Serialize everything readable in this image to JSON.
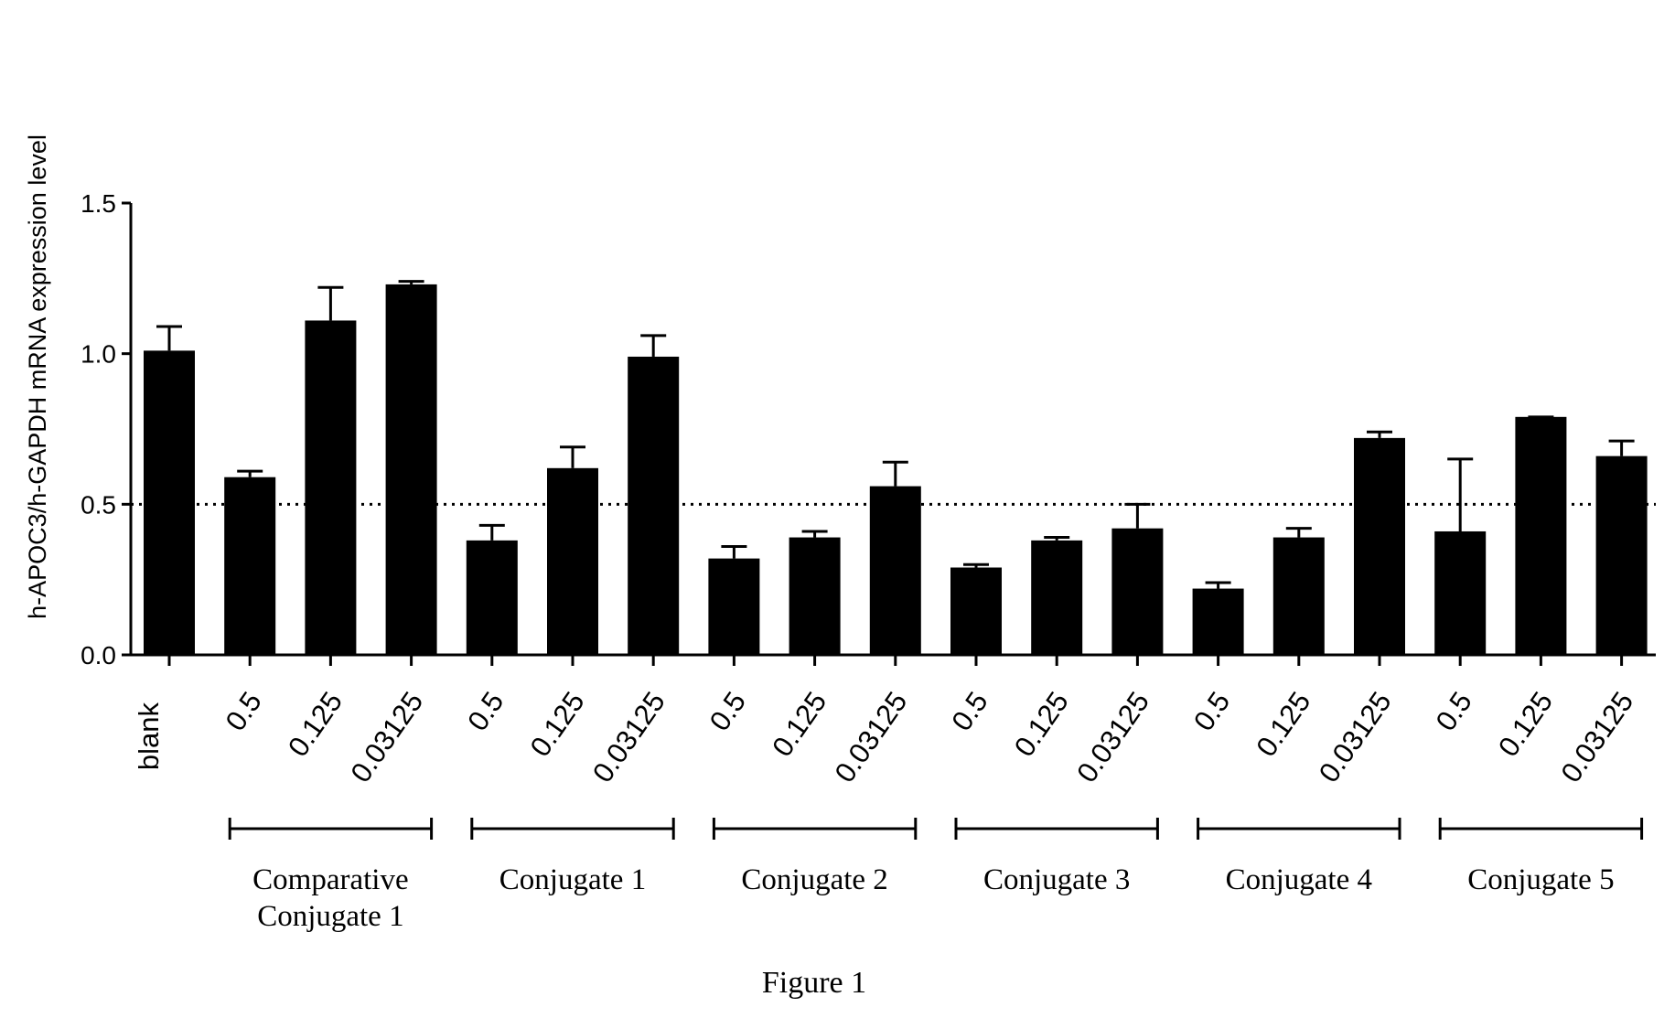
{
  "chart_data": {
    "type": "bar",
    "ylabel": "h-APOC3/h-GAPDH mRNA expression level",
    "ylim": [
      0,
      1.5
    ],
    "yticks": [
      "0.0",
      "0.5",
      "1.0",
      "1.5"
    ],
    "reference_line": 0.5,
    "categories": [
      "blank",
      "0.5",
      "0.125",
      "0.03125",
      "0.5",
      "0.125",
      "0.03125",
      "0.5",
      "0.125",
      "0.03125",
      "0.5",
      "0.125",
      "0.03125",
      "0.5",
      "0.125",
      "0.03125",
      "0.5",
      "0.125",
      "0.03125"
    ],
    "values": [
      1.01,
      0.59,
      1.11,
      1.23,
      0.38,
      0.62,
      0.99,
      0.32,
      0.39,
      0.56,
      0.29,
      0.38,
      0.42,
      0.22,
      0.39,
      0.72,
      0.41,
      0.79,
      0.66
    ],
    "errors": [
      0.08,
      0.02,
      0.11,
      0.01,
      0.05,
      0.07,
      0.07,
      0.04,
      0.02,
      0.08,
      0.01,
      0.01,
      0.08,
      0.02,
      0.03,
      0.02,
      0.24,
      0.0,
      0.05
    ],
    "groups": [
      {
        "label": "Comparative Conjugate 1",
        "start": 1,
        "end": 3
      },
      {
        "label": "Conjugate 1",
        "start": 4,
        "end": 6
      },
      {
        "label": "Conjugate 2",
        "start": 7,
        "end": 9
      },
      {
        "label": "Conjugate 3",
        "start": 10,
        "end": 12
      },
      {
        "label": "Conjugate 4",
        "start": 13,
        "end": 15
      },
      {
        "label": "Conjugate 5",
        "start": 16,
        "end": 18
      }
    ],
    "caption": "Figure 1",
    "bar_color": "#000000"
  }
}
